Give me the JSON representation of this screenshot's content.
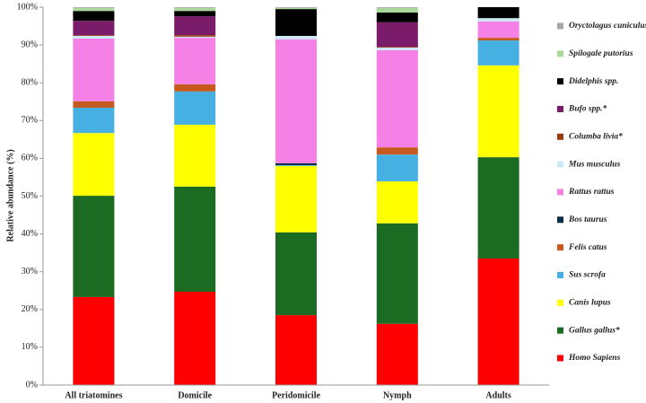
{
  "chart_data": {
    "type": "stacked_bar_percent",
    "y_label": "Relative abundance (%)",
    "categories": [
      "All triatomines",
      "Domicile",
      "Peridomicile",
      "Nymph",
      "Adults"
    ],
    "ylim": [
      0,
      100
    ],
    "yticks": [
      {
        "value": 0,
        "label": "0%"
      },
      {
        "value": 10,
        "label": "10%"
      },
      {
        "value": 20,
        "label": "20%"
      },
      {
        "value": 30,
        "label": "30%"
      },
      {
        "value": 40,
        "label": "40%"
      },
      {
        "value": 50,
        "label": "50%"
      },
      {
        "value": 60,
        "label": "60%"
      },
      {
        "value": 70,
        "label": "70%"
      },
      {
        "value": 80,
        "label": "80%"
      },
      {
        "value": 90,
        "label": "90%"
      },
      {
        "value": 100,
        "label": "100%"
      }
    ],
    "grid": false,
    "legend": "right",
    "series": [
      {
        "name": "Homo Sapiens",
        "color": "#ff0000",
        "values": [
          23.3,
          24.7,
          18.5,
          16.2,
          33.5
        ]
      },
      {
        "name": "Gallus gallus*",
        "color": "#1b6b23",
        "values": [
          26.8,
          27.8,
          21.9,
          26.6,
          26.8
        ]
      },
      {
        "name": "Canis lupus",
        "color": "#ffff00",
        "values": [
          16.6,
          16.4,
          17.6,
          11.1,
          24.3
        ]
      },
      {
        "name": "Sus scrofa",
        "color": "#45b0e1",
        "values": [
          6.7,
          8.8,
          0.2,
          7.1,
          6.6
        ]
      },
      {
        "name": "Felis catus",
        "color": "#c65a1e",
        "values": [
          1.7,
          1.9,
          0,
          1.9,
          0.7
        ]
      },
      {
        "name": "Bos taurus",
        "color": "#0c2d48",
        "values": [
          0,
          0,
          0.5,
          0,
          0
        ]
      },
      {
        "name": "Rattus rattus",
        "color": "#f580e6",
        "values": [
          16.6,
          12.3,
          32.8,
          25.7,
          4.3
        ]
      },
      {
        "name": "Mus musculus",
        "color": "#cde9f7",
        "values": [
          0.7,
          0.3,
          0.9,
          0.7,
          0.9
        ]
      },
      {
        "name": "Columba livia*",
        "color": "#9a3a0e",
        "values": [
          0.2,
          0.4,
          0,
          0.2,
          0
        ]
      },
      {
        "name": "Bufo spp.*",
        "color": "#7b1c6b",
        "values": [
          3.8,
          5.0,
          0,
          6.5,
          0
        ]
      },
      {
        "name": "Didelphis spp.",
        "color": "#000000",
        "values": [
          2.6,
          1.4,
          7.1,
          2.6,
          2.9
        ]
      },
      {
        "name": "Spilogale putorius",
        "color": "#a9d99b",
        "values": [
          0.8,
          0.8,
          0.3,
          1.2,
          0
        ]
      },
      {
        "name": "Oryctolagus cuniculus",
        "color": "#a6a6a6",
        "values": [
          0.2,
          0.2,
          0.2,
          0.2,
          0
        ]
      }
    ]
  }
}
